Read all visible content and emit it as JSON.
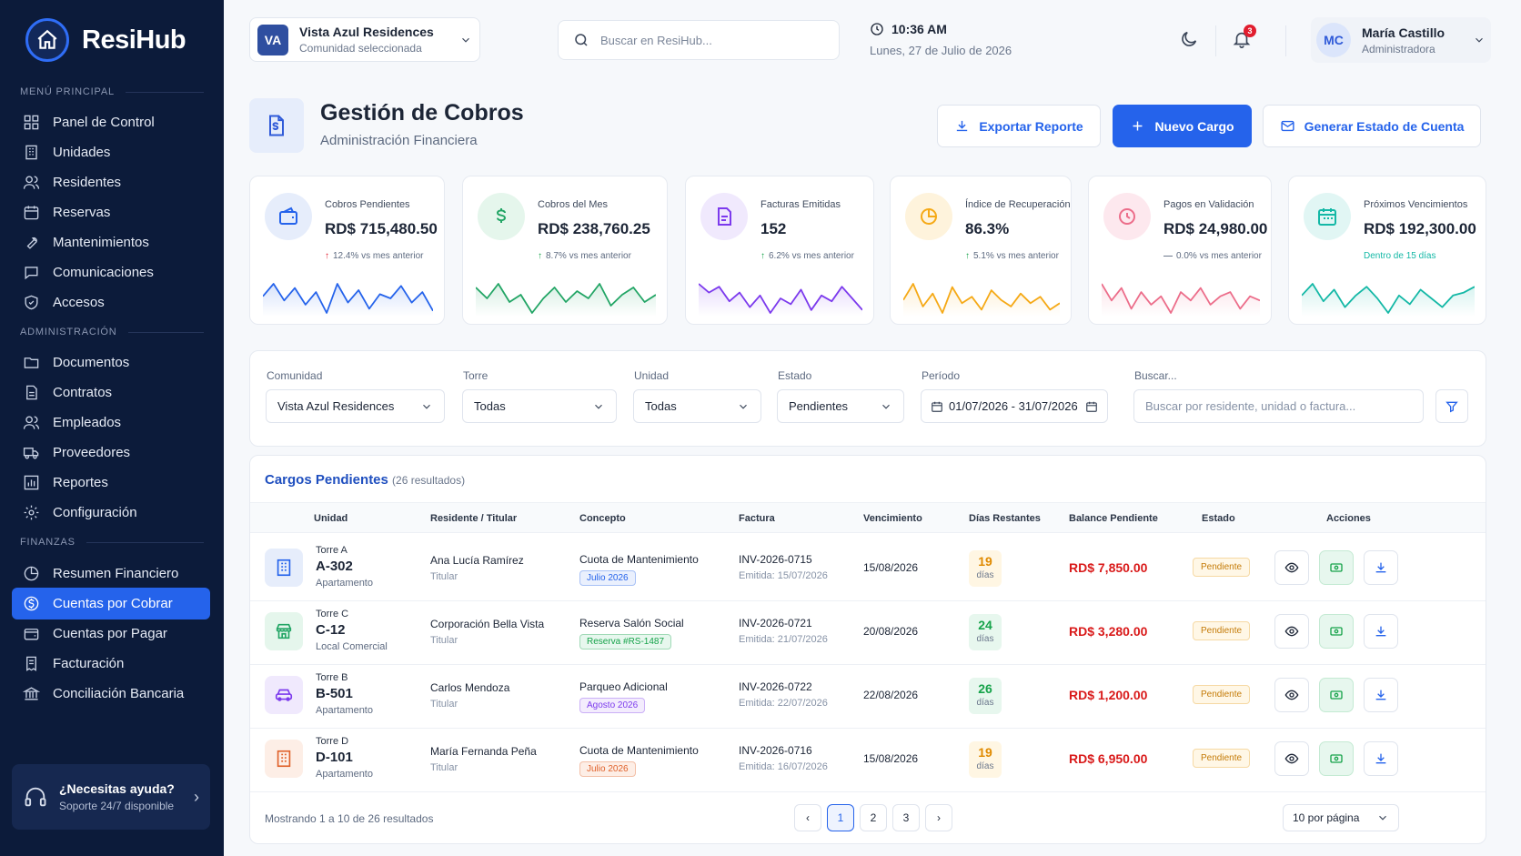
{
  "brand": {
    "name": "ResiHub"
  },
  "sidebar": {
    "sections": [
      "MENÚ PRINCIPAL",
      "ADMINISTRACIÓN",
      "FINANZAS"
    ],
    "main": [
      "Panel de Control",
      "Unidades",
      "Residentes",
      "Reservas",
      "Mantenimientos",
      "Comunicaciones",
      "Accesos"
    ],
    "admin": [
      "Documentos",
      "Contratos",
      "Empleados",
      "Proveedores",
      "Reportes",
      "Configuración"
    ],
    "finance": [
      "Resumen Financiero",
      "Cuentas por Cobrar",
      "Cuentas por Pagar",
      "Facturación",
      "Conciliación Bancaria"
    ],
    "active": "Cuentas por Cobrar",
    "help": {
      "title": "¿Necesitas ayuda?",
      "subtitle": "Soporte 24/7 disponible"
    }
  },
  "header": {
    "community": {
      "initials": "VA",
      "name": "Vista Azul Residences",
      "subtitle": "Comunidad seleccionada"
    },
    "search_placeholder": "Buscar en ResiHub...",
    "time": "10:36 AM",
    "date": "Lunes, 27 de Julio de 2026",
    "notifications_count": "3",
    "user": {
      "initials": "MC",
      "name": "María Castillo",
      "role": "Administradora"
    }
  },
  "page": {
    "title": "Gestión de Cobros",
    "subtitle": "Administración Financiera",
    "buttons": {
      "export": "Exportar Reporte",
      "new": "Nuevo Cargo",
      "statement": "Generar Estado de Cuenta"
    }
  },
  "kpis": [
    {
      "label": "Cobros Pendientes",
      "value": "RD$ 715,480.50",
      "trend_arrow": "↑",
      "trend": "12.4%",
      "trend_text": " vs mes anterior",
      "color": "#e11d2e",
      "accent": "#2563eb",
      "bg": "#e6edfb",
      "icon": "wallet-icon",
      "spark": [
        12,
        18,
        10,
        16,
        8,
        14,
        4,
        18,
        9,
        15,
        6,
        13,
        11,
        17,
        9,
        14,
        5
      ]
    },
    {
      "label": "Cobros del Mes",
      "value": "RD$ 238,760.25",
      "trend_arrow": "↑",
      "trend": "8.7%",
      "trend_text": " vs mes anterior",
      "color": "#16a34a",
      "accent": "#22a565",
      "bg": "#e5f6ec",
      "icon": "dollar-icon",
      "spark": [
        12,
        9,
        13,
        8,
        10,
        5,
        9,
        12,
        8,
        11,
        9,
        13,
        7,
        10,
        12,
        8,
        10
      ]
    },
    {
      "label": "Facturas Emitidas",
      "value": "152",
      "trend_arrow": "↑",
      "trend": "6.2%",
      "trend_text": " vs mes anterior",
      "color": "#16a34a",
      "accent": "#7c3aed",
      "bg": "#f0e9fd",
      "icon": "invoice-icon",
      "spark": [
        15,
        12,
        14,
        9,
        12,
        7,
        11,
        5,
        10,
        8,
        13,
        6,
        11,
        9,
        14,
        10,
        6
      ]
    },
    {
      "label": "Índice de Recuperación",
      "value": "86.3%",
      "trend_arrow": "↑",
      "trend": "5.1%",
      "trend_text": " vs mes anterior",
      "color": "#16a34a",
      "accent": "#f5a916",
      "bg": "#fef3dc",
      "icon": "pie-icon",
      "spark": [
        10,
        15,
        8,
        12,
        6,
        14,
        9,
        11,
        7,
        13,
        10,
        8,
        12,
        9,
        11,
        7,
        9
      ]
    },
    {
      "label": "Pagos en Validación",
      "value": "RD$ 24,980.00",
      "trend_arrow": "—",
      "trend": "0.0%",
      "trend_text": " vs mes anterior",
      "color": "#6b778c",
      "accent": "#ec6d8a",
      "bg": "#fde8ee",
      "icon": "clock-icon",
      "spark": [
        12,
        8,
        11,
        6,
        10,
        7,
        9,
        5,
        10,
        8,
        11,
        7,
        9,
        10,
        6,
        9,
        8
      ]
    },
    {
      "label": "Próximos Vencimientos",
      "value": "RD$ 192,300.00",
      "trend_arrow": "",
      "trend": "",
      "trend_text": "Dentro de 15 días",
      "color": "#14b8a6",
      "accent": "#14b8a6",
      "bg": "#e1f6f4",
      "icon": "calendar-icon",
      "spark": [
        10,
        14,
        8,
        12,
        6,
        10,
        13,
        9,
        4,
        10,
        7,
        12,
        9,
        6,
        10,
        11,
        13
      ]
    }
  ],
  "filters": {
    "labels": {
      "community": "Comunidad",
      "tower": "Torre",
      "unit": "Unidad",
      "status": "Estado",
      "period": "Período",
      "search": "Buscar..."
    },
    "values": {
      "community": "Vista Azul Residences",
      "tower": "Todas",
      "unit": "Todas",
      "status": "Pendientes",
      "period": "01/07/2026 - 31/07/2026"
    },
    "search_placeholder": "Buscar por residente, unidad o factura..."
  },
  "table": {
    "title": "Cargos Pendientes",
    "count": "(26 resultados)",
    "headers": [
      "Unidad",
      "Residente / Titular",
      "Concepto",
      "Factura",
      "Vencimiento",
      "Días Restantes",
      "Balance Pendiente",
      "Estado",
      "Acciones"
    ],
    "rows": [
      {
        "tower": "Torre A",
        "unit": "A-302",
        "type": "Apartamento",
        "resident": "Ana Lucía Ramírez",
        "role": "Titular",
        "concept": "Cuota de Mantenimiento",
        "tag": "Julio 2026",
        "invoice": "INV-2026-0715",
        "issued": "Emitida: 15/07/2026",
        "due": "15/08/2026",
        "days": "19",
        "days_label": "días",
        "balance": "RD$ 7,850.00",
        "status": "Pendiente",
        "icon": "building-icon",
        "days_color": "#e08a00",
        "days_bg": "#fff6e3",
        "tag_color": "#2563eb",
        "tag_bg": "#eaf0fd"
      },
      {
        "tower": "Torre C",
        "unit": "C-12",
        "type": "Local Comercial",
        "resident": "Corporación Bella Vista",
        "role": "Titular",
        "concept": "Reserva Salón Social",
        "tag": "Reserva #RS-1487",
        "invoice": "INV-2026-0721",
        "issued": "Emitida: 21/07/2026",
        "due": "20/08/2026",
        "days": "24",
        "days_label": "días",
        "balance": "RD$ 3,280.00",
        "status": "Pendiente",
        "icon": "store-icon",
        "days_color": "#16a34a",
        "days_bg": "#e7f7ee",
        "tag_color": "#16a34a",
        "tag_bg": "#e7f7ee"
      },
      {
        "tower": "Torre B",
        "unit": "B-501",
        "type": "Apartamento",
        "resident": "Carlos Mendoza",
        "role": "Titular",
        "concept": "Parqueo Adicional",
        "tag": "Agosto 2026",
        "invoice": "INV-2026-0722",
        "issued": "Emitida: 22/07/2026",
        "due": "22/08/2026",
        "days": "26",
        "days_label": "días",
        "balance": "RD$ 1,200.00",
        "status": "Pendiente",
        "icon": "car-icon",
        "days_color": "#16a34a",
        "days_bg": "#e7f7ee",
        "tag_color": "#7c3aed",
        "tag_bg": "#f3ecfd"
      },
      {
        "tower": "Torre D",
        "unit": "D-101",
        "type": "Apartamento",
        "resident": "María Fernanda Peña",
        "role": "Titular",
        "concept": "Cuota de Mantenimiento",
        "tag": "Julio 2026",
        "invoice": "INV-2026-0716",
        "issued": "Emitida: 16/07/2026",
        "due": "15/08/2026",
        "days": "19",
        "days_label": "días",
        "balance": "RD$ 6,950.00",
        "status": "Pendiente",
        "icon": "building-icon",
        "days_color": "#e08a00",
        "days_bg": "#fff6e3",
        "tag_color": "#e0622b",
        "tag_bg": "#fdeee6"
      }
    ],
    "footer": "Mostrando 1 a 10 de 26 resultados",
    "pages": [
      "1",
      "2",
      "3"
    ],
    "per_page": "10 por página"
  }
}
